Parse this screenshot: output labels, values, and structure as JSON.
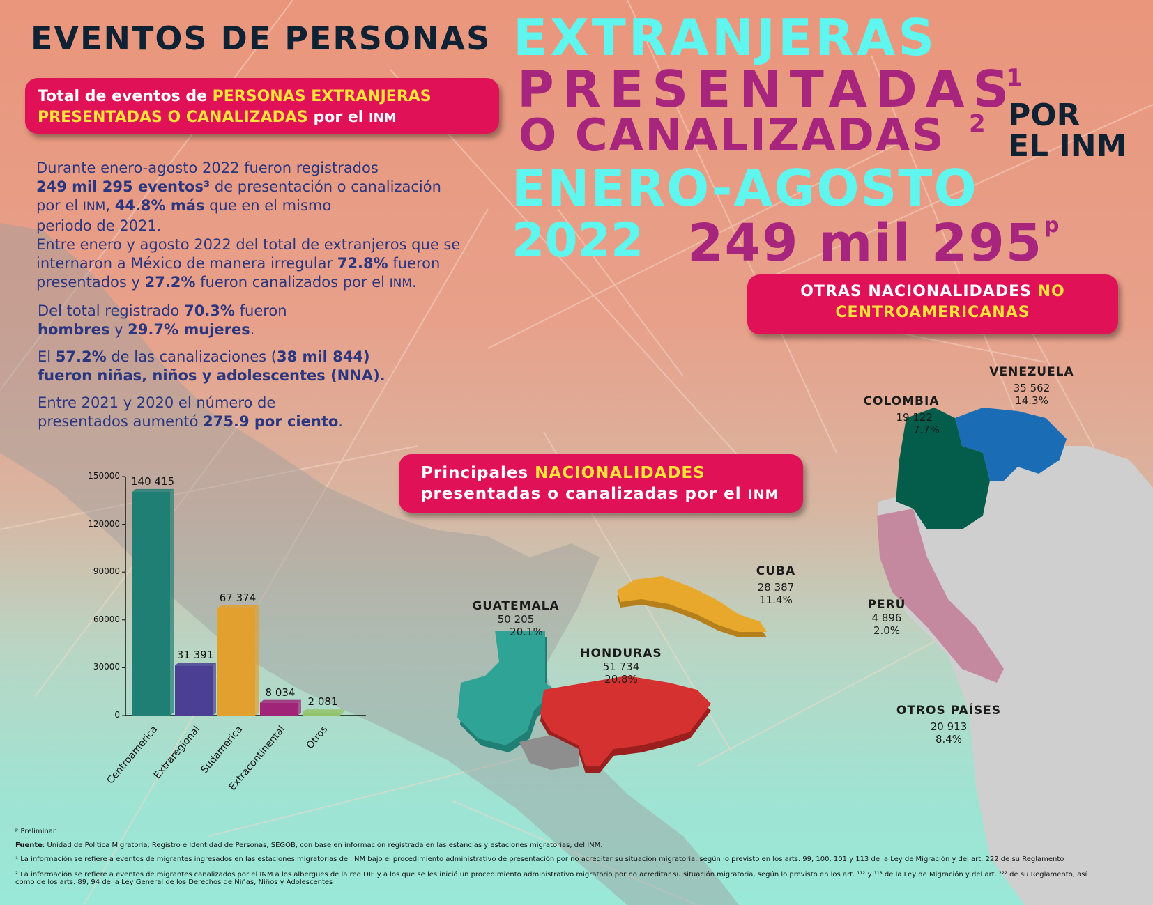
{
  "header": {
    "title_left": "EVENTOS DE PERSONAS",
    "line1": "EXTRANJERAS",
    "line2": "PRESENTADAS",
    "sup1": "1",
    "line3": "O CANALIZADAS",
    "sup2": "2",
    "por": "POR",
    "el_inm": "EL INM",
    "line4": "ENERO-AGOSTO",
    "line5": "2022",
    "total": "249 mil 295",
    "sup_p": "p"
  },
  "total_pill": {
    "part1": "Total de eventos de ",
    "highlight1": "PERSONAS EXTRANJERAS",
    "highlight2": "PRESENTADAS O CANALIZADAS",
    "part2": " por el ",
    "inm": "INM"
  },
  "summary": {
    "p1_a": "Durante enero-agosto 2022 fueron registrados",
    "p1_b": "249 mil 295 eventos³",
    "p1_c": " de presentación o canalización",
    "p1_d": "por el  ",
    "p1_inm": "INM",
    "p1_e": ", ",
    "p1_f": "44.8% más",
    "p1_g": " que en el mismo",
    "p1_h": "periodo de 2021.",
    "p2_a": "Entre enero y agosto 2022 del total de extranjeros que se",
    "p2_b": "internaron a México de manera irregular ",
    "p2_c": "72.8%",
    "p2_d": " fueron",
    "p2_e": "presentados y ",
    "p2_f": "27.2%",
    "p2_g": " fueron canalizados por el ",
    "p2_inm": "INM",
    "p2_h": ".",
    "p3_a": "Del total registrado ",
    "p3_b": "70.3%",
    "p3_c": " fueron",
    "p3_d": "hombres",
    "p3_e": " y ",
    "p3_f": "29.7% mujeres",
    "p3_g": ".",
    "p4_a": "El ",
    "p4_b": "57.2%",
    "p4_c": " de las canalizaciones (",
    "p4_d": "38 mil 844)",
    "p4_e": "fueron niñas, niños y adolescentes (NNA).",
    "p5_a": "Entre 2021 y 2020 el número de",
    "p5_b": "presentados aumentó ",
    "p5_c": "275.9 por ciento",
    "p5_d": "."
  },
  "otras_pill": {
    "text1": "OTRAS NACIONALIDADES ",
    "hl1": "NO",
    "hl2": "CENTROAMERICANAS"
  },
  "principales_pill": {
    "text1": "Principales ",
    "hl": "NACIONALIDADES",
    "text2": "presentadas o canalizadas por el ",
    "inm": "INM"
  },
  "countries": {
    "venezuela": {
      "name": "VENEZUELA",
      "count": "35 562",
      "pct": "14.3%"
    },
    "colombia": {
      "name": "COLOMBIA",
      "count": "19 122",
      "pct": "7.7%"
    },
    "cuba": {
      "name": "CUBA",
      "count": "28 387",
      "pct": "11.4%"
    },
    "guatemala": {
      "name": "GUATEMALA",
      "count": "50 205",
      "pct": "20.1%"
    },
    "honduras": {
      "name": "HONDURAS",
      "count": "51 734",
      "pct": "20.8%"
    },
    "peru": {
      "name": "PERÚ",
      "count": "4 896",
      "pct": "2.0%"
    },
    "otros": {
      "name": "OTROS PAÍSES",
      "count": "20 913",
      "pct": "8.4%"
    }
  },
  "colors": {
    "guatemala": "#2ea396",
    "honduras": "#d63131",
    "cuba": "#e8a82b",
    "colombia": "#045c4a",
    "venezuela": "#1a6cb5",
    "peru": "#c4899f",
    "land": "#bdbdbd"
  },
  "chart_data": {
    "type": "bar",
    "categories": [
      "Centroamérica",
      "Extraregional",
      "Sudamérica",
      "Extracontinental",
      "Otros"
    ],
    "values": [
      140415,
      31391,
      67374,
      8034,
      2081
    ],
    "value_labels": [
      "140 415",
      "31 391",
      "67 374",
      "8 034",
      "2 081"
    ],
    "colors": [
      "#1f7f74",
      "#4a3f93",
      "#e2a02f",
      "#a02478",
      "#94c26a"
    ],
    "ylim": [
      0,
      150000
    ],
    "yticks": [
      "0",
      "30000",
      "60000",
      "90000",
      "120000",
      "150000"
    ],
    "ytick_values": [
      0,
      30000,
      60000,
      90000,
      120000,
      150000
    ],
    "grid": false
  },
  "footnotes": {
    "preliminar": "ᵖ Preliminar",
    "fuente_label": "Fuente",
    "fuente": ": Unidad de Política Migratoria, Registro e Identidad de Personas, SEGOB, con base en información registrada en las estancias y estaciones migratorias, del INM.",
    "n1": "¹ La información se refiere a eventos de migrantes ingresados en las estaciones migratorias del INM bajo el procedimiento administrativo de presentación por no acreditar su situación migratoria, según lo previsto en los arts. 99, 100, 101 y 113 de la Ley de Migración y del art. 222 de su Reglamento",
    "n2a": "² La información se refiere a eventos de migrantes canalizados por el INM a los albergues de la red DIF y a los que se les inició un procedimiento administrativo migratorio por no acreditar su situación migratoria, según lo previsto en los art. ¹¹² y ¹¹³ de la Ley de Migración y del art. ²²² de su Reglamento, así",
    "n2b": "como de los arts. 89, 94 de la Ley General de los Derechos de Niñas, Niños y Adolescentes"
  }
}
